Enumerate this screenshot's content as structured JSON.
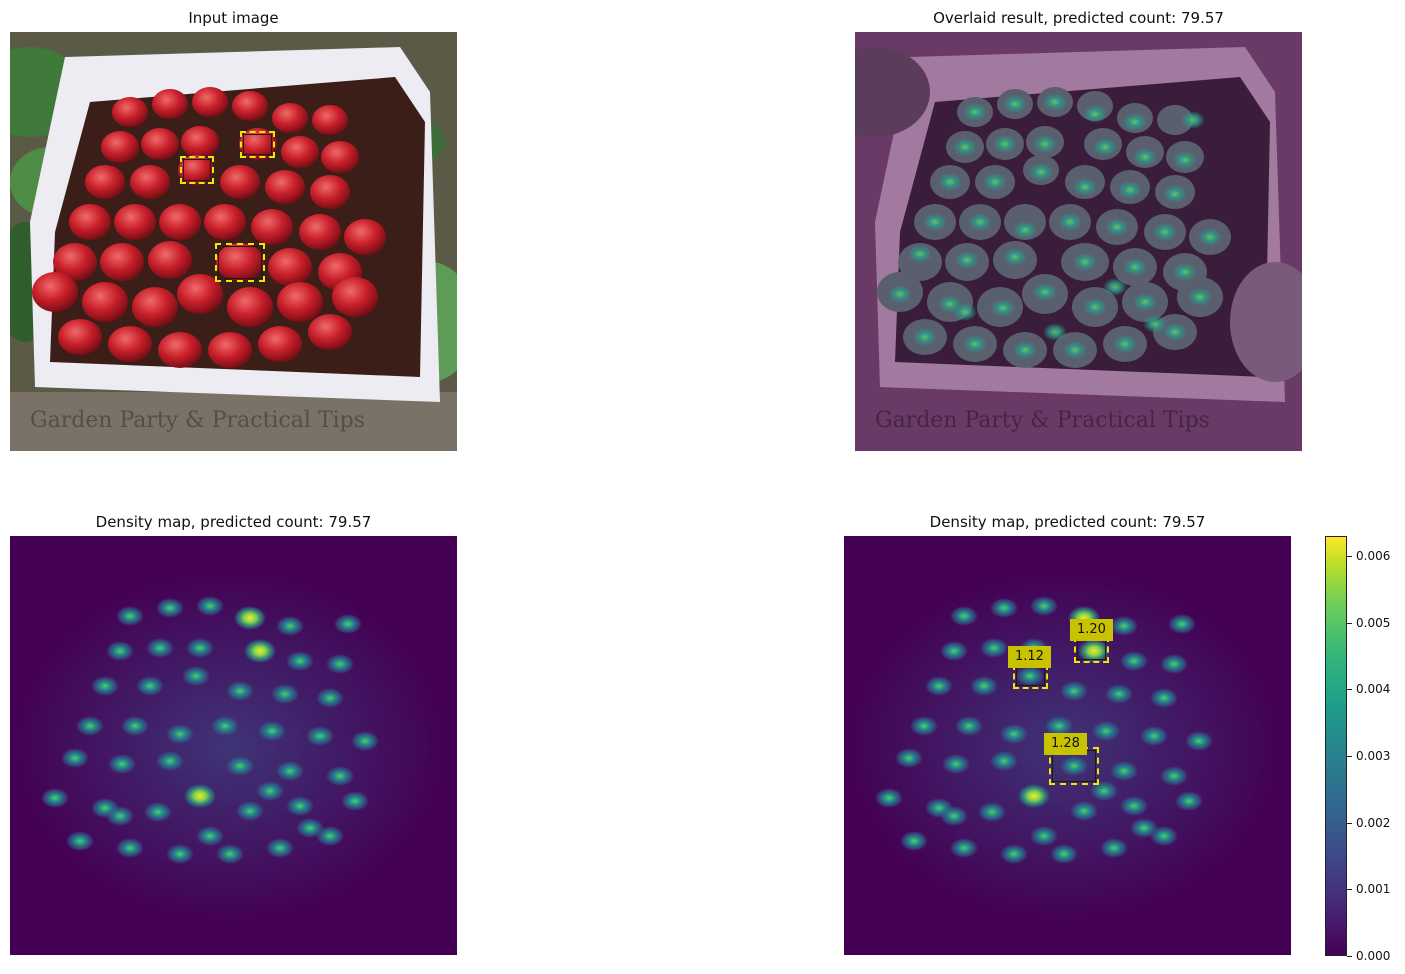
{
  "panels": {
    "input": {
      "title": "Input image",
      "watermark": "Garden Party & Practical Tips"
    },
    "overlay": {
      "title": "Overlaid result, predicted count: 79.57"
    },
    "density": {
      "title": "Density map, predicted count: 79.57"
    },
    "density_annotated": {
      "title": "Density map, predicted count: 79.57",
      "exemplars": [
        {
          "label": "1.12"
        },
        {
          "label": "1.20"
        },
        {
          "label": "1.28"
        }
      ]
    }
  },
  "colorbar": {
    "colormap": "viridis",
    "range": [
      0.0,
      0.0063
    ],
    "ticks": [
      "0.006",
      "0.005",
      "0.004",
      "0.003",
      "0.002",
      "0.001",
      "0.000"
    ]
  },
  "colors": {
    "exemplar_box": "#f2e600",
    "label_bg": "#c8c200",
    "density_bg": "#440154",
    "overlay_tint": "#7a3f76"
  }
}
